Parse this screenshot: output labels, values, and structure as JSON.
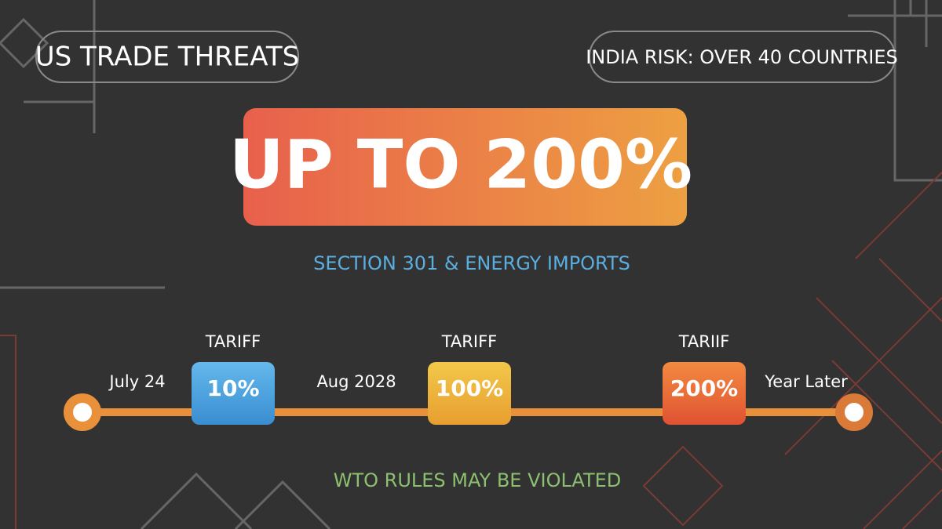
{
  "header": {
    "title": "US TRADE THREATS",
    "badge": "INDIA RISK: OVER 40 COUNTRIES"
  },
  "headline": "UP TO 200%",
  "subtitle": "SECTION 301 & ENERGY IMPORTS",
  "timeline": {
    "dates": [
      "July 24",
      "Aug 2028",
      "Year Later"
    ],
    "steps": [
      {
        "label": "TARIFF",
        "value": "10%"
      },
      {
        "label": "TARIFF",
        "value": "100%"
      },
      {
        "label": "TARIIF",
        "value": "200%"
      }
    ]
  },
  "footer": "WTO RULES MAY BE VIOLATED"
}
